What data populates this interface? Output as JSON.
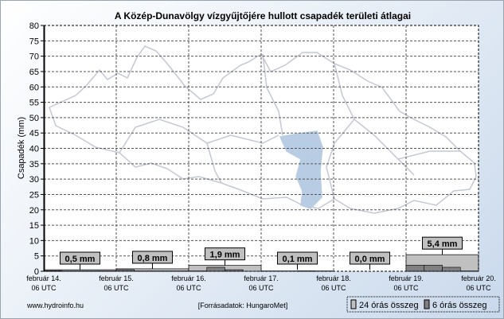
{
  "chart_data": {
    "type": "bar",
    "title": "A Közép-Dunavölgy vízgyűjtőjére hullott csapadék területi átlagai",
    "ylabel": "Csapadék (mm)",
    "xlabel": "",
    "ylim": [
      0,
      80
    ],
    "yticks": [
      0,
      5,
      10,
      15,
      20,
      25,
      30,
      35,
      40,
      45,
      50,
      55,
      60,
      65,
      70,
      75,
      80
    ],
    "grid": true,
    "x_ticks": [
      {
        "date": "február 14.",
        "time": "06 UTC"
      },
      {
        "date": "február 15.",
        "time": "06 UTC"
      },
      {
        "date": "február 16.",
        "time": "06 UTC"
      },
      {
        "date": "február 17.",
        "time": "06 UTC"
      },
      {
        "date": "február 18.",
        "time": "06 UTC"
      },
      {
        "date": "február 19.",
        "time": "06 UTC"
      },
      {
        "date": "február 20.",
        "time": "06 UTC"
      }
    ],
    "series": [
      {
        "name": "24 órás összeg",
        "color": "#c0c0c0",
        "values": [
          0.5,
          0.8,
          1.9,
          0.1,
          0.0,
          5.4
        ],
        "labels": [
          "0,5 mm",
          "0,8 mm",
          "1,9 mm",
          "0,1 mm",
          "0,0 mm",
          "5,4 mm"
        ]
      },
      {
        "name": "6 órás összeg",
        "color": "#808080",
        "values": [
          [
            0.2,
            0.1,
            0.1,
            0.1
          ],
          [
            0.5,
            0.1,
            0.1,
            0.1
          ],
          [
            0.1,
            1.3,
            0.5,
            0.0
          ],
          [
            0.0,
            0.0,
            0.1,
            0.0
          ],
          [
            0,
            0,
            0,
            0
          ],
          [
            2.0,
            2.0,
            1.3,
            0.1
          ]
        ]
      }
    ],
    "legend": {
      "placement": "bottom-right",
      "items": [
        "24 órás összeg",
        "6 órás összeg"
      ]
    }
  },
  "footer": {
    "site": "www.hydroinfo.hu",
    "source": "[Forrásadatok: HungaroMet]"
  }
}
